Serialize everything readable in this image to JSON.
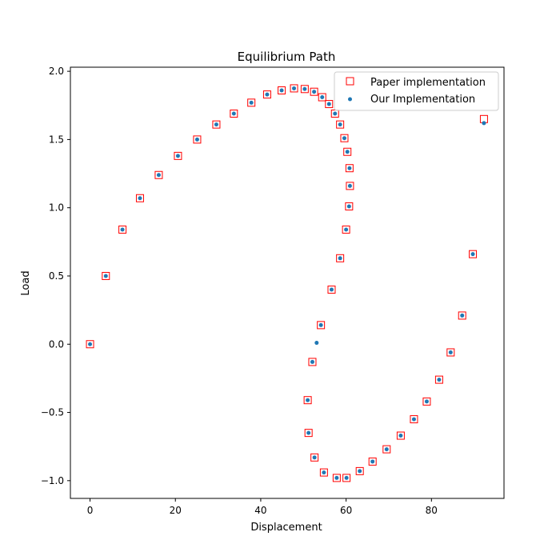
{
  "chart_data": {
    "type": "scatter",
    "title": "Equilibrium Path",
    "xlabel": "Displacement",
    "ylabel": "Load",
    "xlim": [
      -4.6,
      97.0
    ],
    "ylim": [
      -1.13,
      2.03
    ],
    "xticks": [
      0,
      20,
      40,
      60,
      80
    ],
    "yticks": [
      -1.0,
      -0.5,
      0.0,
      0.5,
      1.0,
      1.5,
      2.0
    ],
    "xtick_labels": [
      "0",
      "20",
      "40",
      "60",
      "80"
    ],
    "ytick_labels": [
      "−1.0",
      "−0.5",
      "0.0",
      "0.5",
      "1.0",
      "1.5",
      "2.0"
    ],
    "grid": false,
    "legend_position": "top-right",
    "series": [
      {
        "name": "Paper implementation",
        "marker": "square-open",
        "color": "#ff0000",
        "x": [
          0.0,
          3.7,
          7.6,
          11.7,
          16.1,
          20.6,
          25.1,
          29.6,
          33.7,
          37.8,
          41.5,
          44.9,
          47.8,
          50.3,
          52.5,
          54.4,
          56.0,
          57.4,
          58.6,
          59.6,
          60.3,
          60.8,
          60.9,
          60.7,
          60.0,
          58.6,
          56.6,
          54.1,
          52.1,
          51.0,
          51.2,
          52.6,
          54.8,
          57.8,
          60.1,
          63.2,
          66.2,
          69.5,
          72.8,
          75.9,
          78.9,
          81.8,
          84.5,
          87.2,
          89.7,
          92.3
        ],
        "y": [
          0.0,
          0.5,
          0.84,
          1.07,
          1.24,
          1.38,
          1.5,
          1.61,
          1.69,
          1.77,
          1.83,
          1.86,
          1.875,
          1.87,
          1.85,
          1.81,
          1.76,
          1.69,
          1.61,
          1.51,
          1.41,
          1.29,
          1.16,
          1.01,
          0.84,
          0.63,
          0.4,
          0.14,
          -0.13,
          -0.41,
          -0.65,
          -0.83,
          -0.94,
          -0.98,
          -0.98,
          -0.93,
          -0.86,
          -0.77,
          -0.67,
          -0.55,
          -0.42,
          -0.26,
          -0.06,
          0.21,
          0.66,
          1.65
        ]
      },
      {
        "name": "Our Implementation",
        "marker": "dot",
        "color": "#1f77b4",
        "x": [
          0.0,
          3.7,
          7.6,
          11.7,
          16.1,
          20.6,
          25.1,
          29.6,
          33.7,
          37.8,
          41.5,
          44.9,
          47.8,
          50.3,
          52.5,
          54.4,
          56.0,
          57.4,
          58.6,
          59.6,
          60.3,
          60.8,
          60.9,
          60.7,
          60.0,
          58.6,
          56.6,
          54.1,
          53.1,
          52.1,
          51.0,
          51.2,
          52.6,
          54.8,
          57.8,
          60.1,
          63.2,
          66.2,
          69.5,
          72.8,
          75.9,
          78.9,
          81.8,
          84.5,
          87.2,
          89.7,
          92.3
        ],
        "y": [
          0.0,
          0.5,
          0.84,
          1.07,
          1.24,
          1.38,
          1.5,
          1.61,
          1.69,
          1.77,
          1.83,
          1.86,
          1.875,
          1.87,
          1.85,
          1.81,
          1.76,
          1.69,
          1.61,
          1.51,
          1.41,
          1.29,
          1.16,
          1.01,
          0.84,
          0.63,
          0.4,
          0.14,
          0.01,
          -0.13,
          -0.41,
          -0.65,
          -0.83,
          -0.94,
          -0.98,
          -0.98,
          -0.93,
          -0.86,
          -0.77,
          -0.67,
          -0.55,
          -0.42,
          -0.26,
          -0.06,
          0.21,
          0.66,
          1.62
        ]
      }
    ]
  }
}
